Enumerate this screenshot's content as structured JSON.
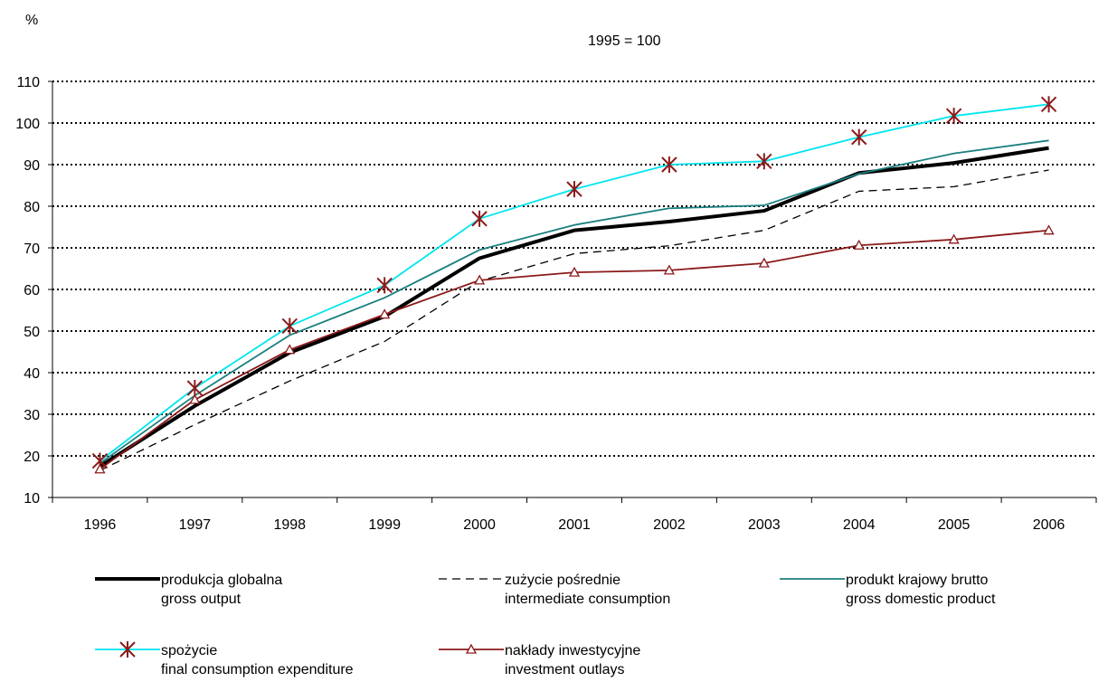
{
  "chart_data": {
    "type": "line",
    "unit_label": "%",
    "base_note": "1995 = 100",
    "categories": [
      "1996",
      "1997",
      "1998",
      "1999",
      "2000",
      "2001",
      "2002",
      "2003",
      "2004",
      "2005",
      "2006"
    ],
    "ylim": [
      10,
      110
    ],
    "yticks": [
      10,
      20,
      30,
      40,
      50,
      60,
      70,
      80,
      90,
      100,
      110
    ],
    "grid": true,
    "series": [
      {
        "name": "produkcja globalna",
        "name_en": "gross output",
        "color": "#000000",
        "style": "thick-solid",
        "marker": "none",
        "values": [
          17.5,
          32,
          44.8,
          53.5,
          67.5,
          74.2,
          76.3,
          78.9,
          88,
          90.4,
          94
        ]
      },
      {
        "name": "zużycie pośrednie",
        "name_en": "intermediate consumption",
        "color": "#000000",
        "style": "dashed",
        "marker": "none",
        "values": [
          16.5,
          27.5,
          38,
          47.5,
          62,
          68.6,
          70.5,
          74.2,
          83.6,
          84.7,
          88.7
        ]
      },
      {
        "name": "produkt krajowy brutto",
        "name_en": "gross domestic product",
        "color": "#1b7f7f",
        "style": "solid",
        "marker": "none",
        "values": [
          18.2,
          34.5,
          49,
          58,
          69.5,
          75.5,
          79.5,
          80.2,
          87.8,
          92.7,
          95.8
        ]
      },
      {
        "name": "spożycie",
        "name_en": "final consumption expenditure",
        "color": "#00e5ee",
        "marker_color": "#8b1a1a",
        "style": "solid",
        "marker": "star",
        "values": [
          18.8,
          36.3,
          51.2,
          61,
          77,
          84.1,
          90,
          90.8,
          96.6,
          101.7,
          104.5
        ]
      },
      {
        "name": "nakłady inwestycyjne",
        "name_en": "investment outlays",
        "color": "#8b1a1a",
        "style": "solid",
        "marker": "triangle",
        "values": [
          16.8,
          33.5,
          45.5,
          54,
          62.2,
          64.1,
          64.6,
          66.3,
          70.6,
          72,
          74.2
        ]
      }
    ]
  }
}
